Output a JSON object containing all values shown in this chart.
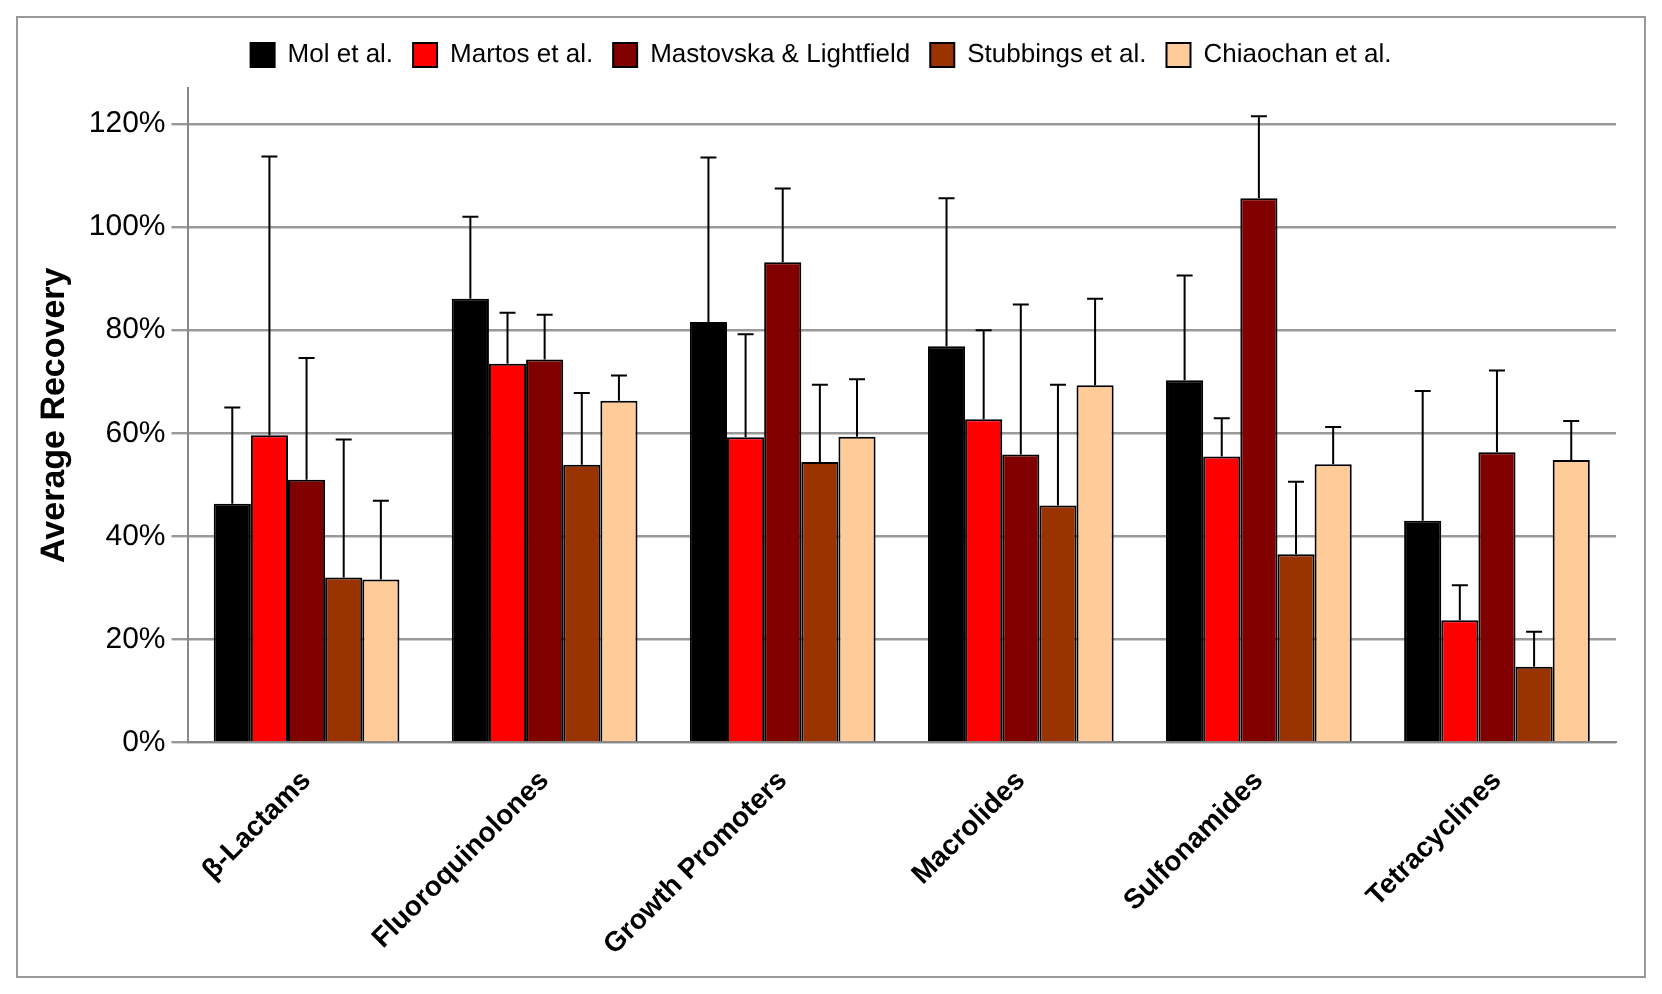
{
  "chart_data": {
    "type": "bar",
    "ylabel": "Average Recovery",
    "categories": [
      "β-Lactams",
      "Fluoroquinolones",
      "Growth Promoters",
      "Macrolides",
      "Sulfonamides",
      "Tetracyclines"
    ],
    "series": [
      {
        "name": "Mol et al.",
        "color": "#000000",
        "values": [
          46.3,
          86.1,
          81.6,
          76.9,
          70.3,
          43.0
        ],
        "errors": [
          [
            46.3,
            65.0
          ],
          [
            86.1,
            102.0
          ],
          [
            81.6,
            113.5
          ],
          [
            76.9,
            105.6
          ],
          [
            70.3,
            90.6
          ],
          [
            43.0,
            68.2
          ]
        ]
      },
      {
        "name": "Martos et al.",
        "color": "#ff0000",
        "values": [
          59.6,
          73.5,
          59.2,
          62.7,
          55.5,
          23.7
        ],
        "errors": [
          [
            59.6,
            113.7
          ],
          [
            73.5,
            83.4
          ],
          [
            59.2,
            79.2
          ],
          [
            62.7,
            80.0
          ],
          [
            55.5,
            62.9
          ],
          [
            23.7,
            30.5
          ]
        ]
      },
      {
        "name": "Mastovska & Lightfield",
        "color": "#800000",
        "values": [
          51.0,
          74.3,
          93.2,
          55.9,
          105.6,
          56.3
        ],
        "errors": [
          [
            51.0,
            74.6
          ],
          [
            74.3,
            83.0
          ],
          [
            93.2,
            107.5
          ],
          [
            55.9,
            85.0
          ],
          [
            105.6,
            121.5
          ],
          [
            56.3,
            72.2
          ]
        ]
      },
      {
        "name": "Stubbings et al.",
        "color": "#993300",
        "values": [
          32.0,
          53.9,
          54.4,
          46.0,
          36.5,
          14.7
        ],
        "errors": [
          [
            32.0,
            58.8
          ],
          [
            53.9,
            67.8
          ],
          [
            54.4,
            69.4
          ],
          [
            46.0,
            69.4
          ],
          [
            36.5,
            50.6
          ],
          [
            14.7,
            21.5
          ]
        ]
      },
      {
        "name": "Chiaochan et al.",
        "color": "#ffcc99",
        "values": [
          31.6,
          66.3,
          59.3,
          69.3,
          54.0,
          54.8
        ],
        "errors": [
          [
            31.6,
            46.9
          ],
          [
            66.3,
            71.2
          ],
          [
            59.3,
            70.5
          ],
          [
            69.3,
            86.1
          ],
          [
            54.0,
            61.2
          ],
          [
            54.8,
            62.4
          ]
        ]
      }
    ],
    "ylim": [
      0,
      127
    ],
    "yticks": [
      {
        "value": 0,
        "label": "0%"
      },
      {
        "value": 20,
        "label": "20%"
      },
      {
        "value": 40,
        "label": "40%"
      },
      {
        "value": 60,
        "label": "60%"
      },
      {
        "value": 80,
        "label": "80%"
      },
      {
        "value": 100,
        "label": "100%"
      },
      {
        "value": 120,
        "label": "120%"
      }
    ],
    "grid": "y",
    "legend": "top"
  }
}
